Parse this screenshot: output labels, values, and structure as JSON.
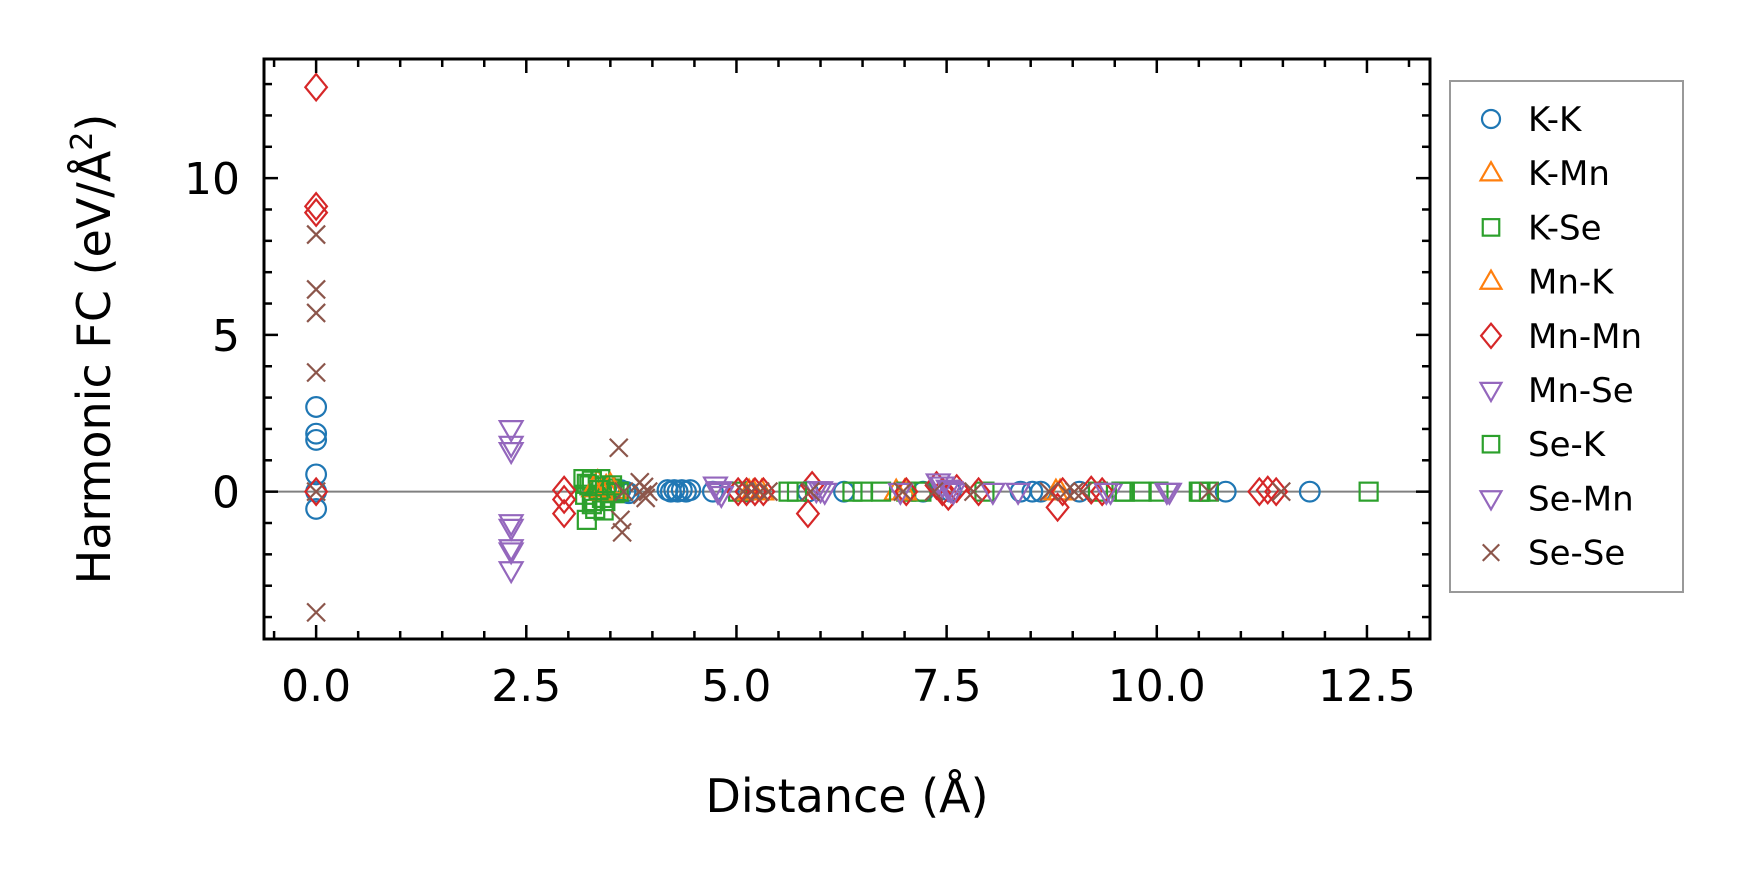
{
  "chart_data": {
    "type": "scatter",
    "xlabel": "Distance (Å)",
    "ylabel_main": "Harmonic FC (eV/Å",
    "ylabel_sup": "2",
    "ylabel_close": ")",
    "xlim": [
      -0.62,
      13.25
    ],
    "ylim": [
      -4.7,
      13.8
    ],
    "xticks": [
      0.0,
      2.5,
      5.0,
      7.5,
      10.0,
      12.5
    ],
    "xtick_labels": [
      "0.0",
      "2.5",
      "5.0",
      "7.5",
      "10.0",
      "12.5"
    ],
    "yticks": [
      0,
      5,
      10
    ],
    "ytick_labels": [
      "0",
      "5",
      "10"
    ],
    "reference_line_y": 0,
    "legend_position": "right-outside",
    "series": [
      {
        "name": "K-K",
        "marker": "circle",
        "color": "#1f77b4",
        "x": [
          0.0,
          0.0,
          0.0,
          0.0,
          0.0,
          0.0,
          3.62,
          3.68,
          3.72,
          4.18,
          4.22,
          4.26,
          4.3,
          4.35,
          4.4,
          4.45,
          4.72,
          5.14,
          5.85,
          6.28,
          7.22,
          7.55,
          8.38,
          8.52,
          8.62,
          9.08,
          10.82,
          11.82
        ],
        "y": [
          2.7,
          1.85,
          1.65,
          0.55,
          -0.55,
          0.0,
          0.05,
          0.0,
          -0.05,
          0.05,
          0.0,
          0.05,
          0.0,
          0.05,
          0.0,
          0.05,
          0.0,
          0.0,
          0.0,
          0.0,
          0.0,
          0.0,
          0.0,
          0.0,
          0.0,
          0.0,
          0.0,
          0.0
        ]
      },
      {
        "name": "K-Mn",
        "marker": "triangle-up",
        "color": "#ff7f0e",
        "x": [
          3.35,
          3.45,
          3.55,
          5.2,
          5.3,
          6.9,
          8.8
        ],
        "y": [
          0.3,
          0.15,
          0.05,
          0.0,
          0.0,
          0.0,
          0.0
        ]
      },
      {
        "name": "K-Se",
        "marker": "square",
        "color": "#2ca02c",
        "x": [
          3.18,
          3.2,
          3.22,
          3.25,
          3.28,
          3.3,
          3.32,
          3.35,
          3.38,
          3.4,
          3.42,
          3.45,
          3.5,
          3.55,
          3.6,
          5.02,
          5.62,
          6.38,
          6.72,
          7.02,
          7.2,
          7.95,
          9.3,
          9.58,
          9.82,
          10.02,
          10.52,
          10.62,
          12.52
        ],
        "y": [
          0.4,
          -0.1,
          -0.9,
          0.2,
          0.35,
          -0.3,
          -0.55,
          0.15,
          0.4,
          -0.2,
          -0.6,
          0.0,
          0.1,
          -0.05,
          0.0,
          0.0,
          0.0,
          0.0,
          0.0,
          0.0,
          0.0,
          0.0,
          0.0,
          0.0,
          0.0,
          0.0,
          0.0,
          0.0,
          0.0
        ]
      },
      {
        "name": "Mn-K",
        "marker": "triangle-up",
        "color": "#ff7f0e",
        "x": [
          3.3,
          3.4,
          3.5,
          5.15,
          7.0,
          8.85
        ],
        "y": [
          0.1,
          0.0,
          0.2,
          0.0,
          0.0,
          0.0
        ]
      },
      {
        "name": "Mn-Mn",
        "marker": "diamond",
        "color": "#d62728",
        "x": [
          0.0,
          0.0,
          0.0,
          0.0,
          2.95,
          2.95,
          2.95,
          5.02,
          5.12,
          5.22,
          5.32,
          5.85,
          5.9,
          7.02,
          7.38,
          7.45,
          7.52,
          7.62,
          7.88,
          8.82,
          8.88,
          9.22,
          9.35,
          11.22,
          11.32,
          11.42
        ],
        "y": [
          12.9,
          9.1,
          8.9,
          0.0,
          0.05,
          -0.25,
          -0.7,
          0.0,
          0.0,
          0.0,
          0.0,
          -0.7,
          0.2,
          0.0,
          0.2,
          0.0,
          -0.15,
          0.1,
          0.0,
          -0.5,
          0.0,
          0.05,
          0.0,
          0.0,
          0.05,
          0.0
        ]
      },
      {
        "name": "Mn-Se",
        "marker": "triangle-down",
        "color": "#9467bd",
        "x": [
          2.32,
          2.32,
          2.32,
          2.32,
          2.32,
          4.75,
          4.78,
          4.82,
          5.95,
          6.05,
          6.95,
          7.4,
          7.52,
          7.58,
          8.05,
          9.45,
          10.12
        ],
        "y": [
          2.0,
          1.3,
          -1.15,
          -1.8,
          -2.5,
          0.2,
          0.0,
          -0.1,
          0.05,
          0.0,
          0.0,
          0.3,
          0.1,
          0.0,
          0.0,
          0.0,
          0.0
        ]
      },
      {
        "name": "Se-K",
        "marker": "square",
        "color": "#2ca02c",
        "x": [
          3.22,
          3.28,
          3.36,
          3.44,
          3.52,
          5.72,
          6.5,
          9.62,
          10.5
        ],
        "y": [
          0.25,
          -0.4,
          0.05,
          -0.3,
          0.2,
          0.0,
          0.0,
          0.0,
          0.0
        ]
      },
      {
        "name": "Se-Mn",
        "marker": "triangle-down",
        "color": "#9467bd",
        "x": [
          2.32,
          2.32,
          2.32,
          4.8,
          6.0,
          7.45,
          7.55,
          8.35,
          9.4,
          10.15
        ],
        "y": [
          1.5,
          -1.0,
          -1.9,
          0.05,
          0.05,
          0.2,
          0.05,
          0.0,
          0.0,
          0.0
        ]
      },
      {
        "name": "Se-Se",
        "marker": "x",
        "color": "#8c564b",
        "x": [
          0.0,
          0.0,
          0.0,
          0.0,
          0.0,
          0.0,
          3.6,
          3.62,
          3.64,
          3.66,
          3.85,
          3.88,
          3.9,
          3.92,
          3.95,
          5.08,
          5.18,
          5.28,
          5.38,
          5.88,
          6.98,
          7.35,
          7.82,
          8.72,
          8.92,
          9.02,
          9.12,
          10.62,
          11.48
        ],
        "y": [
          8.2,
          6.45,
          5.7,
          3.8,
          -3.85,
          0.0,
          1.4,
          -0.9,
          -1.3,
          0.0,
          0.3,
          -0.1,
          0.15,
          -0.2,
          0.0,
          0.0,
          0.0,
          0.0,
          0.0,
          0.0,
          0.0,
          0.0,
          0.0,
          0.0,
          0.0,
          0.0,
          0.0,
          0.0,
          0.0
        ]
      }
    ]
  }
}
